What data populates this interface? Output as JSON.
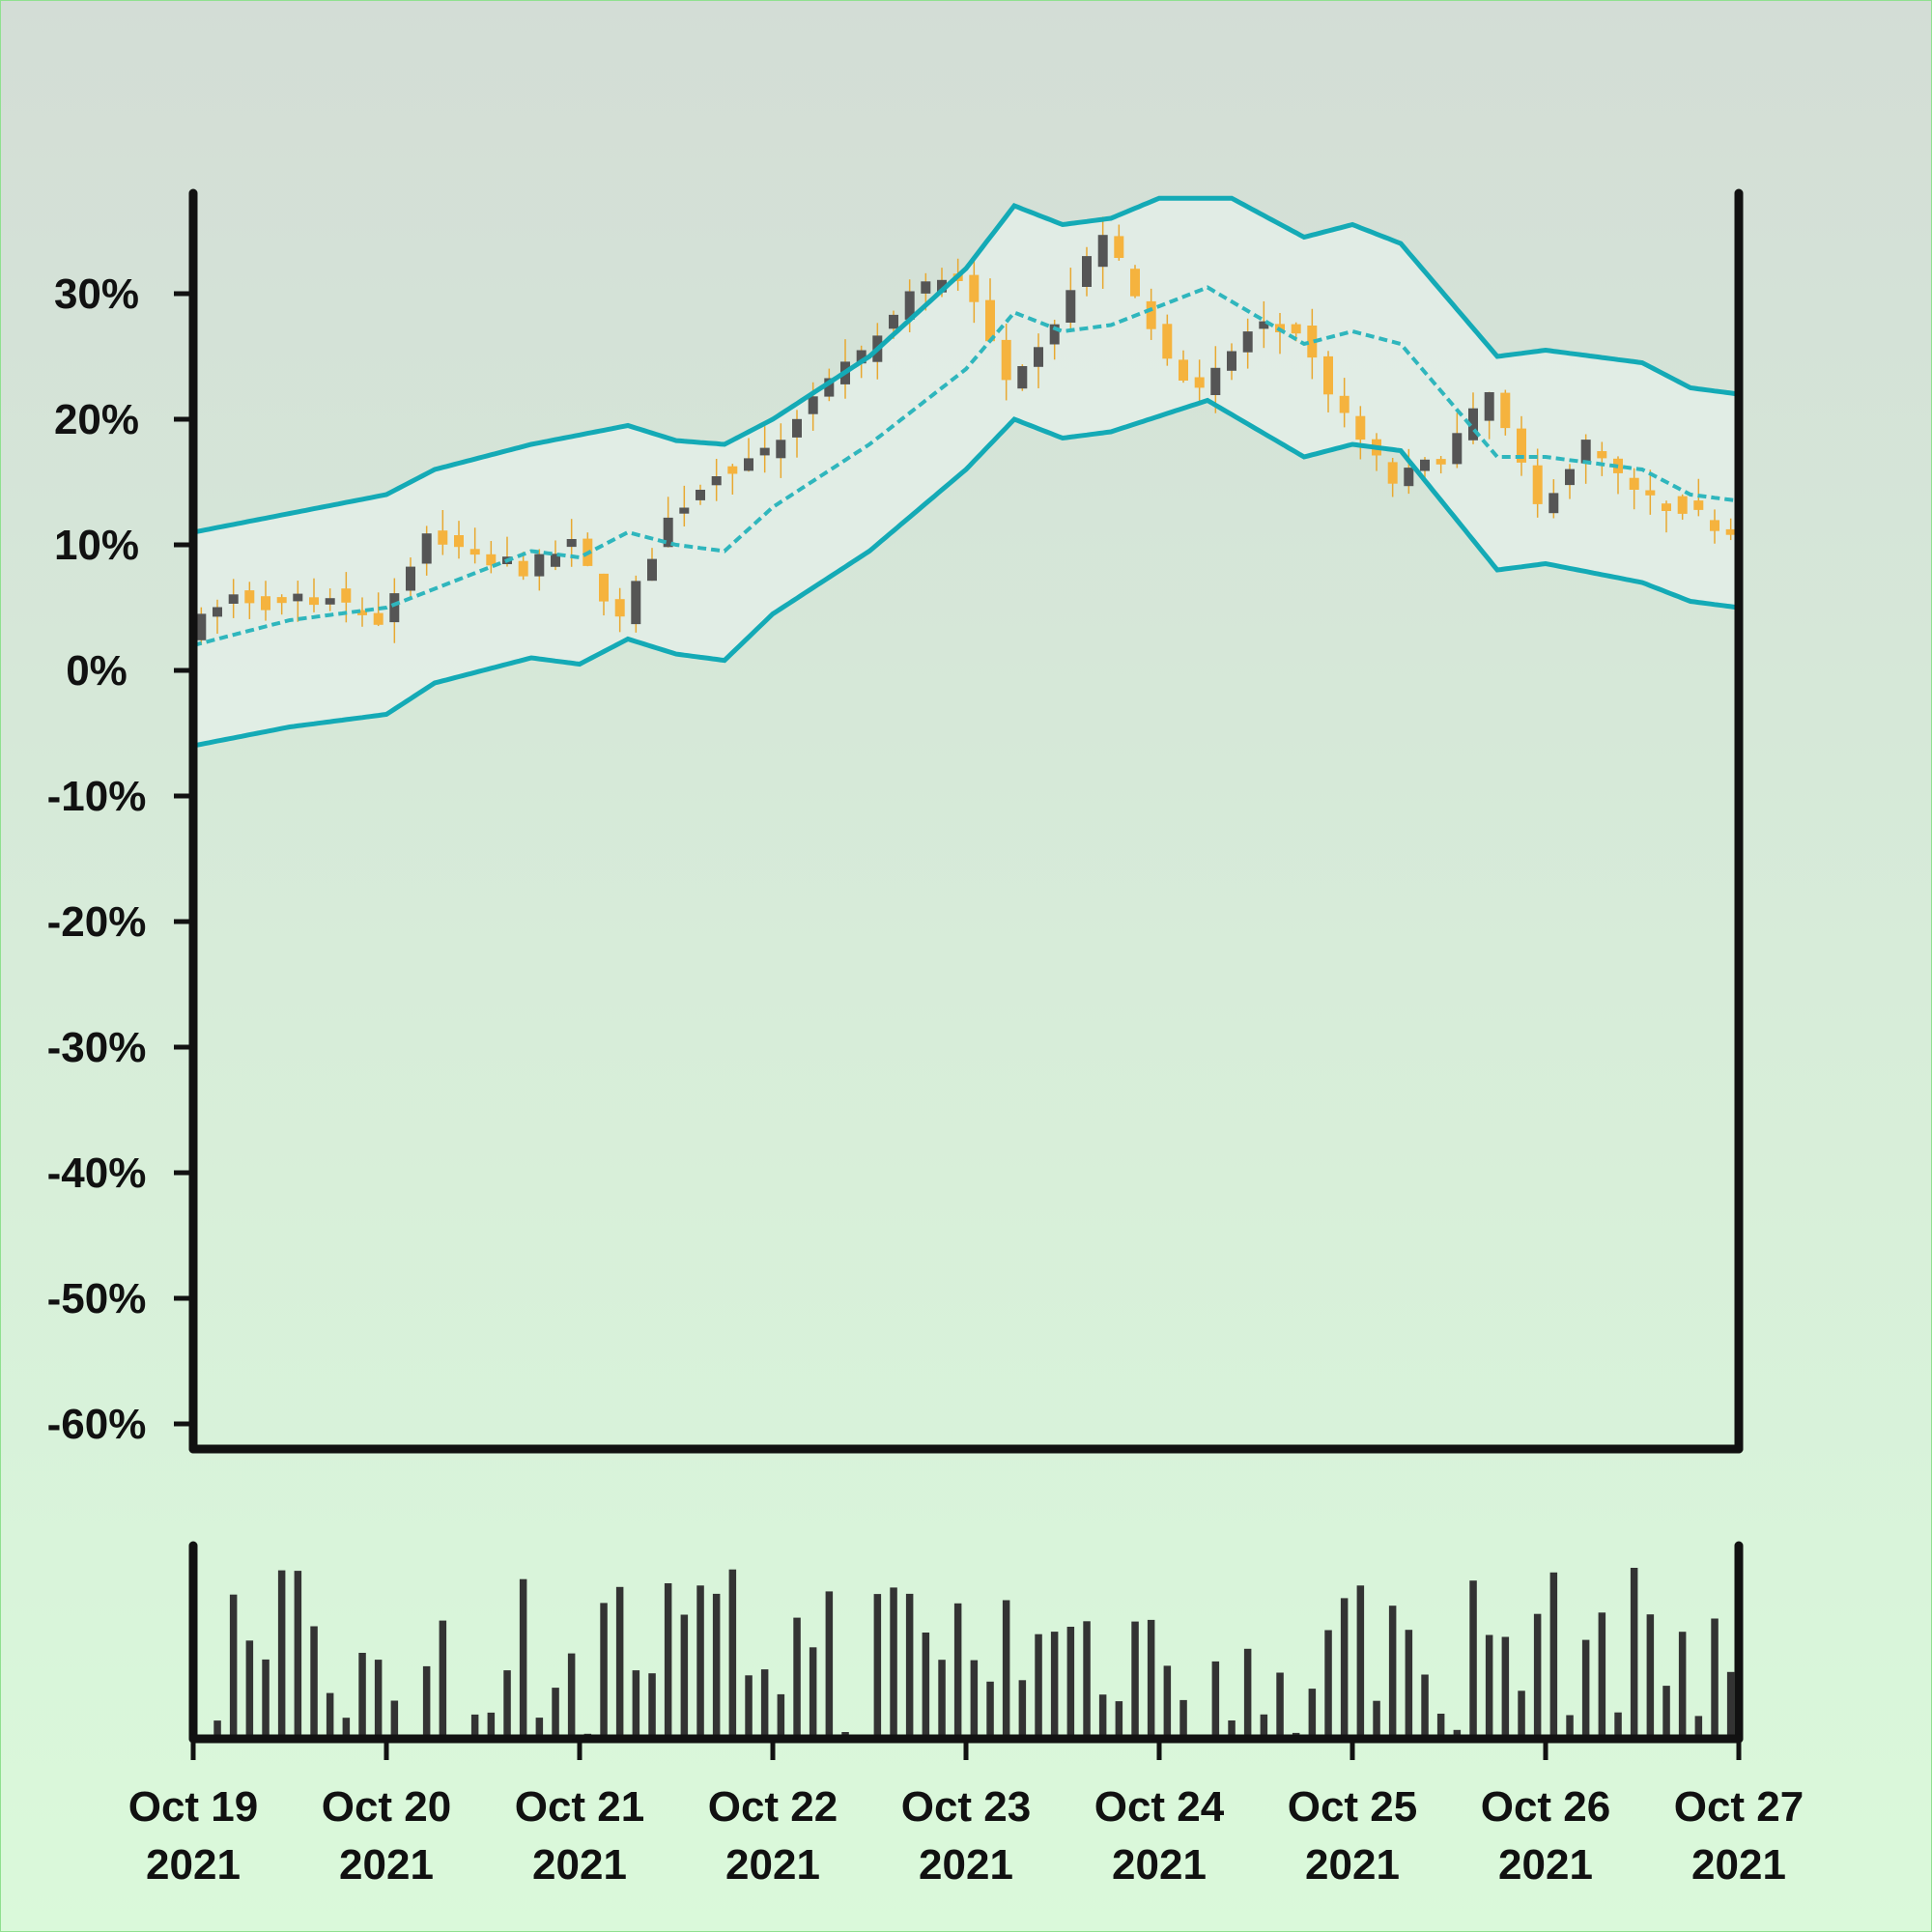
{
  "chart_data": {
    "type": "candlestick",
    "y_unit": "%",
    "ylim": [
      -62,
      38
    ],
    "y_ticks": [
      30,
      20,
      10,
      0,
      -10,
      -20,
      -30,
      -40,
      -50,
      -60
    ],
    "y_tick_labels": [
      "30%",
      "20%",
      "10%",
      "0%",
      "-10%",
      "-20%",
      "-30%",
      "-40%",
      "-50%",
      "-60%"
    ],
    "x_range": [
      "2021-10-19",
      "2021-10-27"
    ],
    "x_ticks": [
      "2021-10-19",
      "2021-10-20",
      "2021-10-21",
      "2021-10-22",
      "2021-10-23",
      "2021-10-24",
      "2021-10-25",
      "2021-10-26",
      "2021-10-27"
    ],
    "x_tick_labels": [
      [
        "Oct 19",
        "2021"
      ],
      [
        "Oct 20",
        "2021"
      ],
      [
        "Oct 21",
        "2021"
      ],
      [
        "Oct 22",
        "2021"
      ],
      [
        "Oct 23",
        "2021"
      ],
      [
        "Oct 24",
        "2021"
      ],
      [
        "Oct 25",
        "2021"
      ],
      [
        "Oct 26",
        "2021"
      ],
      [
        "Oct 27",
        "2021"
      ]
    ],
    "candle_interval_hours": 2,
    "close_path": [
      [
        "2021-10-19",
        3
      ],
      [
        "2021-10-19 06:00",
        6
      ],
      [
        "2021-10-19 12:00",
        5
      ],
      [
        "2021-10-19 18:00",
        6
      ],
      [
        "2021-10-20 00:00",
        4
      ],
      [
        "2021-10-20 06:00",
        11
      ],
      [
        "2021-10-20 12:00",
        9
      ],
      [
        "2021-10-20 18:00",
        8
      ],
      [
        "2021-10-21 00:00",
        10
      ],
      [
        "2021-10-21 06:00",
        4
      ],
      [
        "2021-10-21 12:00",
        12
      ],
      [
        "2021-10-21 18:00",
        16
      ],
      [
        "2021-10-22 00:00",
        17
      ],
      [
        "2021-10-22 06:00",
        22
      ],
      [
        "2021-10-22 12:00",
        25
      ],
      [
        "2021-10-22 18:00",
        30
      ],
      [
        "2021-10-23 00:00",
        32
      ],
      [
        "2021-10-23 06:00",
        23
      ],
      [
        "2021-10-23 12:00",
        28
      ],
      [
        "2021-10-23 18:00",
        35
      ],
      [
        "2021-10-24 00:00",
        27
      ],
      [
        "2021-10-24 06:00",
        22
      ],
      [
        "2021-10-24 12:00",
        27
      ],
      [
        "2021-10-24 18:00",
        27
      ],
      [
        "2021-10-25 00:00",
        20
      ],
      [
        "2021-10-25 06:00",
        15
      ],
      [
        "2021-10-25 12:00",
        17
      ],
      [
        "2021-10-25 18:00",
        22
      ],
      [
        "2021-10-26 00:00",
        13
      ],
      [
        "2021-10-26 06:00",
        18
      ],
      [
        "2021-10-26 12:00",
        14
      ],
      [
        "2021-10-26 18:00",
        13
      ],
      [
        "2021-10-27 00:00",
        11
      ]
    ],
    "bollinger": {
      "middle": [
        [
          "2021-10-19",
          2
        ],
        [
          "2021-10-19 12:00",
          4
        ],
        [
          "2021-10-20 00:00",
          5
        ],
        [
          "2021-10-20 12:00",
          8
        ],
        [
          "2021-10-20 18:00",
          9.5
        ],
        [
          "2021-10-21 00:00",
          9
        ],
        [
          "2021-10-21 06:00",
          11
        ],
        [
          "2021-10-21 12:00",
          10
        ],
        [
          "2021-10-21 18:00",
          9.5
        ],
        [
          "2021-10-22 00:00",
          13
        ],
        [
          "2021-10-22 12:00",
          18
        ],
        [
          "2021-10-23 00:00",
          24
        ],
        [
          "2021-10-23 06:00",
          28.5
        ],
        [
          "2021-10-23 12:00",
          27
        ],
        [
          "2021-10-23 18:00",
          27.5
        ],
        [
          "2021-10-24 06:00",
          30.5
        ],
        [
          "2021-10-24 18:00",
          26
        ],
        [
          "2021-10-25 00:00",
          27
        ],
        [
          "2021-10-25 06:00",
          26
        ],
        [
          "2021-10-25 18:00",
          17
        ],
        [
          "2021-10-26 00:00",
          17
        ],
        [
          "2021-10-26 12:00",
          16
        ],
        [
          "2021-10-26 18:00",
          14
        ],
        [
          "2021-10-27 00:00",
          13.5
        ]
      ],
      "upper": [
        [
          "2021-10-19",
          11
        ],
        [
          "2021-10-19 12:00",
          12.5
        ],
        [
          "2021-10-20 00:00",
          14
        ],
        [
          "2021-10-20 06:00",
          16
        ],
        [
          "2021-10-20 12:00",
          17
        ],
        [
          "2021-10-20 18:00",
          18
        ],
        [
          "2021-10-21 06:00",
          19.5
        ],
        [
          "2021-10-21 12:00",
          18.3
        ],
        [
          "2021-10-21 18:00",
          18
        ],
        [
          "2021-10-22 00:00",
          20
        ],
        [
          "2021-10-22 12:00",
          25
        ],
        [
          "2021-10-23 00:00",
          32
        ],
        [
          "2021-10-23 06:00",
          37
        ],
        [
          "2021-10-23 12:00",
          35.5
        ],
        [
          "2021-10-23 18:00",
          36
        ],
        [
          "2021-10-24 00:00",
          37.6
        ],
        [
          "2021-10-24 09:00",
          37.6
        ],
        [
          "2021-10-24 18:00",
          34.5
        ],
        [
          "2021-10-25 00:00",
          35.5
        ],
        [
          "2021-10-25 06:00",
          34
        ],
        [
          "2021-10-25 18:00",
          25
        ],
        [
          "2021-10-26 00:00",
          25.5
        ],
        [
          "2021-10-26 12:00",
          24.5
        ],
        [
          "2021-10-26 18:00",
          22.5
        ],
        [
          "2021-10-27 00:00",
          22
        ]
      ],
      "lower": [
        [
          "2021-10-19",
          -6
        ],
        [
          "2021-10-19 12:00",
          -4.5
        ],
        [
          "2021-10-20 00:00",
          -3.5
        ],
        [
          "2021-10-20 06:00",
          -1
        ],
        [
          "2021-10-20 12:00",
          0
        ],
        [
          "2021-10-20 18:00",
          1
        ],
        [
          "2021-10-21 00:00",
          0.5
        ],
        [
          "2021-10-21 06:00",
          2.5
        ],
        [
          "2021-10-21 12:00",
          1.3
        ],
        [
          "2021-10-21 18:00",
          0.8
        ],
        [
          "2021-10-22 00:00",
          4.5
        ],
        [
          "2021-10-22 12:00",
          9.5
        ],
        [
          "2021-10-23 00:00",
          16
        ],
        [
          "2021-10-23 06:00",
          20
        ],
        [
          "2021-10-23 12:00",
          18.5
        ],
        [
          "2021-10-23 18:00",
          19
        ],
        [
          "2021-10-24 06:00",
          21.5
        ],
        [
          "2021-10-24 18:00",
          17
        ],
        [
          "2021-10-25 00:00",
          18
        ],
        [
          "2021-10-25 06:00",
          17.5
        ],
        [
          "2021-10-25 18:00",
          8
        ],
        [
          "2021-10-26 00:00",
          8.5
        ],
        [
          "2021-10-26 12:00",
          7
        ],
        [
          "2021-10-26 18:00",
          5.5
        ],
        [
          "2021-10-27 00:00",
          5
        ]
      ]
    },
    "volume_pane": true,
    "colors": {
      "up": "#555555",
      "down": "#f5b33e",
      "wick": "#e8a830",
      "band": "#14aab6",
      "band_fill": "#e4efe8",
      "axes": "#111111",
      "volume": "#333333"
    }
  }
}
